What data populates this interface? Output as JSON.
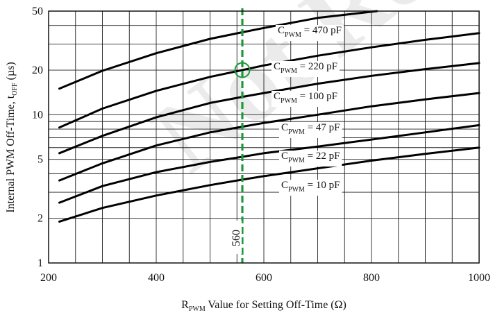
{
  "chart_data": {
    "type": "line",
    "x_scale": "linear",
    "y_scale": "log",
    "xlim": [
      200,
      1000
    ],
    "ylim": [
      1,
      50
    ],
    "x_ticks": [
      200,
      400,
      600,
      800,
      1000
    ],
    "y_ticks": [
      1,
      2,
      5,
      10,
      20,
      50
    ],
    "x_tick_labels": [
      "200",
      "400",
      "600",
      "800",
      "1000"
    ],
    "y_tick_labels": [
      "1",
      "2",
      "5",
      "10",
      "20",
      "50"
    ],
    "grid": true,
    "xlabel": {
      "pre": "R",
      "sub": "PWM",
      "post": " Value for Setting Off-Time (Ω)"
    },
    "ylabel": {
      "pre": "Internal PWM Off-Time, t",
      "sub": "OFF",
      "post": " (µs)"
    },
    "watermark": "Not Rec",
    "series": [
      {
        "label_main": "C",
        "label_sub": "PWM",
        "label_value": " = 470 pF",
        "x": [
          220,
          300,
          400,
          500,
          560,
          600,
          700,
          810
        ],
        "y": [
          15,
          19.8,
          26,
          32.5,
          36,
          38.5,
          45,
          50
        ]
      },
      {
        "label_main": "C",
        "label_sub": "PWM",
        "label_value": " = 220 pF",
        "x": [
          220,
          300,
          400,
          500,
          560,
          600,
          700,
          800,
          900,
          1000
        ],
        "y": [
          8.2,
          11,
          14.5,
          18,
          20,
          21.5,
          25,
          28.5,
          32,
          35.5
        ]
      },
      {
        "label_main": "C",
        "label_sub": "PWM",
        "label_value": " = 100 pF",
        "x": [
          220,
          300,
          400,
          500,
          560,
          600,
          700,
          800,
          900,
          1000
        ],
        "y": [
          5.5,
          7.2,
          9.6,
          12,
          13.2,
          14,
          16.2,
          18.3,
          20.3,
          22.3
        ]
      },
      {
        "label_main": "C",
        "label_sub": "PWM",
        "label_value": " = 47 pF",
        "x": [
          220,
          300,
          400,
          500,
          560,
          600,
          700,
          800,
          900,
          1000
        ],
        "y": [
          3.6,
          4.7,
          6.2,
          7.6,
          8.3,
          8.8,
          10,
          11.4,
          12.7,
          14
        ]
      },
      {
        "label_main": "C",
        "label_sub": "PWM",
        "label_value": " = 22 pF",
        "x": [
          220,
          300,
          400,
          500,
          560,
          600,
          700,
          800,
          900,
          1000
        ],
        "y": [
          2.55,
          3.3,
          4.1,
          4.8,
          5.2,
          5.5,
          6.1,
          6.8,
          7.6,
          8.5
        ]
      },
      {
        "label_main": "C",
        "label_sub": "PWM",
        "label_value": " = 10 pF",
        "x": [
          220,
          300,
          400,
          500,
          560,
          600,
          700,
          800,
          900,
          1000
        ],
        "y": [
          1.9,
          2.35,
          2.85,
          3.35,
          3.65,
          3.85,
          4.35,
          4.9,
          5.45,
          6.0
        ]
      }
    ],
    "marker": {
      "x": 560,
      "label": "560",
      "point_y": 20,
      "color": "#1a9a3a"
    }
  }
}
